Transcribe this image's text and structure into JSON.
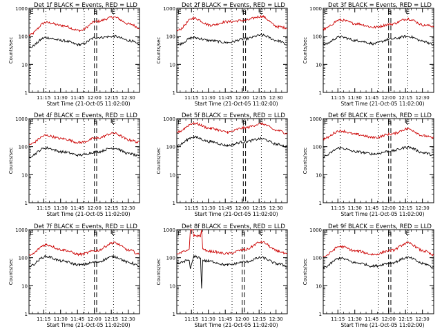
{
  "chart_data": [
    {
      "type": "line",
      "title": "Det 1f BLACK = Events, RED = LLD",
      "xlabel": "Start Time (21-Oct-05 11:02:00)",
      "ylabel": "Counts/sec",
      "yscale": "log",
      "ylim": [
        1,
        1000
      ],
      "y_ticks": [
        "1",
        "10",
        "100",
        "1000"
      ],
      "x_ticks": [
        "11:15",
        "11:30",
        "11:45",
        "12:00",
        "12:15",
        "12:30"
      ],
      "markers": [
        {
          "label": "E",
          "time": "11:02"
        },
        {
          "label": "S",
          "time": "12:01"
        },
        {
          "label": "E",
          "time": "12:17"
        }
      ],
      "night_dotted": [
        "11:17",
        "11:51",
        "12:17"
      ],
      "saa_dashed": [
        "12:00",
        "12:02"
      ],
      "series": [
        {
          "color": "#cc0000",
          "times": [
            "11:02",
            "11:17",
            "11:32",
            "11:47",
            "12:02",
            "12:17",
            "12:32",
            "12:40"
          ],
          "values": [
            110,
            310,
            240,
            160,
            340,
            480,
            270,
            200
          ]
        },
        {
          "color": "#000000",
          "times": [
            "11:02",
            "11:17",
            "11:32",
            "11:47",
            "12:02",
            "12:17",
            "12:32",
            "12:40"
          ],
          "values": [
            40,
            90,
            70,
            50,
            90,
            100,
            70,
            50
          ]
        }
      ]
    },
    {
      "type": "line",
      "title": "Det 2f BLACK = Events, RED = LLD",
      "xlabel": "Start Time (21-Oct-05 11:02:00)",
      "ylabel": "Counts/sec",
      "yscale": "log",
      "ylim": [
        1,
        1000
      ],
      "y_ticks": [
        "1",
        "10",
        "100",
        "1000"
      ],
      "x_ticks": [
        "11:15",
        "11:30",
        "11:45",
        "12:00",
        "12:15",
        "12:30"
      ],
      "markers": [
        {
          "label": "E",
          "time": "11:02"
        },
        {
          "label": "S",
          "time": "12:02"
        },
        {
          "label": "E",
          "time": "12:17"
        }
      ],
      "night_dotted": [
        "11:17",
        "11:51",
        "12:17"
      ],
      "saa_dashed": [
        "12:01",
        "12:03"
      ],
      "series": [
        {
          "color": "#cc0000",
          "times": [
            "11:02",
            "11:17",
            "11:32",
            "11:47",
            "12:02",
            "12:17",
            "12:32",
            "12:40"
          ],
          "values": [
            160,
            440,
            250,
            330,
            370,
            510,
            220,
            200
          ]
        },
        {
          "color": "#000000",
          "times": [
            "11:02",
            "11:17",
            "11:32",
            "11:47",
            "12:02",
            "12:17",
            "12:32",
            "12:40"
          ],
          "values": [
            50,
            90,
            70,
            60,
            80,
            110,
            70,
            50
          ]
        }
      ]
    },
    {
      "type": "line",
      "title": "Det 3f BLACK = Events, RED = LLD",
      "xlabel": "Start Time (21-Oct-05 11:02:00)",
      "ylabel": "Counts/sec",
      "yscale": "log",
      "ylim": [
        1,
        1000
      ],
      "y_ticks": [
        "1",
        "10",
        "100",
        "1000"
      ],
      "x_ticks": [
        "11:15",
        "11:30",
        "11:45",
        "12:00",
        "12:15",
        "12:30"
      ],
      "markers": [
        {
          "label": "E",
          "time": "11:02"
        },
        {
          "label": "S",
          "time": "12:01"
        },
        {
          "label": "E",
          "time": "12:17"
        }
      ],
      "night_dotted": [
        "11:17",
        "11:51",
        "12:17"
      ],
      "saa_dashed": [
        "12:00",
        "12:02"
      ],
      "series": [
        {
          "color": "#cc0000",
          "times": [
            "11:02",
            "11:17",
            "11:32",
            "11:47",
            "12:02",
            "12:17",
            "12:32",
            "12:40"
          ],
          "values": [
            180,
            380,
            280,
            210,
            270,
            420,
            250,
            230
          ]
        },
        {
          "color": "#000000",
          "times": [
            "11:02",
            "11:17",
            "11:32",
            "11:47",
            "12:02",
            "12:17",
            "12:32",
            "12:40"
          ],
          "values": [
            50,
            95,
            70,
            55,
            80,
            100,
            65,
            50
          ]
        }
      ]
    },
    {
      "type": "line",
      "title": "Det 4f BLACK = Events, RED = LLD",
      "xlabel": "Start Time (21-Oct-05 11:02:00)",
      "ylabel": "Counts/sec",
      "yscale": "log",
      "ylim": [
        1,
        1000
      ],
      "y_ticks": [
        "1",
        "10",
        "100",
        "1000"
      ],
      "x_ticks": [
        "11:15",
        "11:30",
        "11:45",
        "12:00",
        "12:15",
        "12:30"
      ],
      "markers": [
        {
          "label": "E",
          "time": "11:02"
        },
        {
          "label": "S",
          "time": "12:01"
        },
        {
          "label": "E",
          "time": "12:17"
        }
      ],
      "night_dotted": [
        "11:17",
        "11:51",
        "12:17"
      ],
      "saa_dashed": [
        "12:00",
        "12:02"
      ],
      "series": [
        {
          "color": "#cc0000",
          "times": [
            "11:02",
            "11:17",
            "11:32",
            "11:47",
            "12:02",
            "12:17",
            "12:32",
            "12:40"
          ],
          "values": [
            120,
            250,
            190,
            140,
            200,
            300,
            170,
            140
          ]
        },
        {
          "color": "#000000",
          "times": [
            "11:02",
            "11:17",
            "11:32",
            "11:47",
            "12:02",
            "12:17",
            "12:32",
            "12:40"
          ],
          "values": [
            45,
            90,
            65,
            50,
            65,
            90,
            55,
            45
          ]
        }
      ]
    },
    {
      "type": "line",
      "title": "Det 5f BLACK = Events, RED = LLD",
      "xlabel": "Start Time (21-Oct-05 11:02:00)",
      "ylabel": "Counts/sec",
      "yscale": "log",
      "ylim": [
        1,
        1000
      ],
      "y_ticks": [
        "1",
        "10",
        "100",
        "1000"
      ],
      "x_ticks": [
        "11:15",
        "11:30",
        "11:45",
        "12:00",
        "12:15",
        "12:30"
      ],
      "markers": [
        {
          "label": "E",
          "time": "11:02"
        },
        {
          "label": "S",
          "time": "12:02"
        },
        {
          "label": "E",
          "time": "12:17"
        }
      ],
      "night_dotted": [
        "11:17",
        "11:51",
        "12:17"
      ],
      "saa_dashed": [
        "12:01",
        "12:03"
      ],
      "series": [
        {
          "color": "#cc0000",
          "times": [
            "11:02",
            "11:17",
            "11:32",
            "11:47",
            "12:02",
            "12:17",
            "12:32",
            "12:40"
          ],
          "values": [
            330,
            680,
            450,
            330,
            470,
            650,
            370,
            300
          ]
        },
        {
          "color": "#000000",
          "times": [
            "11:02",
            "11:17",
            "11:32",
            "11:47",
            "12:02",
            "12:17",
            "12:32",
            "12:40"
          ],
          "values": [
            110,
            220,
            150,
            110,
            150,
            190,
            120,
            100
          ]
        }
      ]
    },
    {
      "type": "line",
      "title": "Det 6f BLACK = Events, RED = LLD",
      "xlabel": "Start Time (21-Oct-05 11:02:00)",
      "ylabel": "Counts/sec",
      "yscale": "log",
      "ylim": [
        1,
        1000
      ],
      "y_ticks": [
        "1",
        "10",
        "100",
        "1000"
      ],
      "x_ticks": [
        "11:15",
        "11:30",
        "11:45",
        "12:00",
        "12:15",
        "12:30"
      ],
      "markers": [
        {
          "label": "E",
          "time": "11:02"
        },
        {
          "label": "S",
          "time": "12:01"
        },
        {
          "label": "E",
          "time": "12:17"
        }
      ],
      "night_dotted": [
        "11:17",
        "11:51",
        "12:17"
      ],
      "saa_dashed": [
        "12:00",
        "12:02"
      ],
      "series": [
        {
          "color": "#cc0000",
          "times": [
            "11:02",
            "11:17",
            "11:32",
            "11:47",
            "12:02",
            "12:17",
            "12:32",
            "12:40"
          ],
          "values": [
            190,
            370,
            270,
            210,
            280,
            430,
            240,
            200
          ]
        },
        {
          "color": "#000000",
          "times": [
            "11:02",
            "11:17",
            "11:32",
            "11:47",
            "12:02",
            "12:17",
            "12:32",
            "12:40"
          ],
          "values": [
            45,
            90,
            65,
            55,
            70,
            95,
            60,
            50
          ]
        }
      ]
    },
    {
      "type": "line",
      "title": "Det 7f BLACK = Events, RED = LLD",
      "xlabel": "Start Time (21-Oct-05 11:02:00)",
      "ylabel": "Counts/sec",
      "yscale": "log",
      "ylim": [
        1,
        1000
      ],
      "y_ticks": [
        "1",
        "10",
        "100",
        "1000"
      ],
      "x_ticks": [
        "11:15",
        "11:30",
        "11:45",
        "12:00",
        "12:15",
        "12:30"
      ],
      "markers": [
        {
          "label": "E",
          "time": "11:02"
        },
        {
          "label": "S",
          "time": "12:01"
        },
        {
          "label": "E",
          "time": "12:17"
        }
      ],
      "night_dotted": [
        "11:17",
        "11:51",
        "12:17"
      ],
      "saa_dashed": [
        "12:00",
        "12:02"
      ],
      "series": [
        {
          "color": "#cc0000",
          "times": [
            "11:02",
            "11:17",
            "11:32",
            "11:47",
            "12:02",
            "12:17",
            "12:32",
            "12:40"
          ],
          "values": [
            120,
            290,
            190,
            130,
            180,
            340,
            180,
            130
          ]
        },
        {
          "color": "#000000",
          "times": [
            "11:02",
            "11:17",
            "11:32",
            "11:47",
            "12:02",
            "12:17",
            "12:32",
            "12:40"
          ],
          "values": [
            50,
            110,
            75,
            55,
            70,
            110,
            65,
            50
          ]
        }
      ]
    },
    {
      "type": "line",
      "title": "Det 8f BLACK = Events, RED = LLD",
      "xlabel": "Start Time (21-Oct-05 11:02:00)",
      "ylabel": "Counts/sec",
      "yscale": "log",
      "ylim": [
        1,
        1000
      ],
      "y_ticks": [
        "1",
        "10",
        "100",
        "1000"
      ],
      "x_ticks": [
        "11:15",
        "11:30",
        "11:45",
        "12:00",
        "12:15",
        "12:30"
      ],
      "markers": [
        {
          "label": "E",
          "time": "11:02"
        },
        {
          "label": "S",
          "time": "12:01"
        },
        {
          "label": "E",
          "time": "12:17"
        }
      ],
      "night_dotted": [
        "11:17",
        "11:51",
        "12:17"
      ],
      "saa_dashed": [
        "12:00",
        "12:02"
      ],
      "series": [
        {
          "color": "#cc0000",
          "times": [
            "11:02",
            "11:11",
            "11:13",
            "11:14",
            "11:16",
            "11:17",
            "11:23",
            "11:24",
            "11:25",
            "11:28",
            "11:30",
            "11:47",
            "12:02",
            "12:17",
            "12:32",
            "12:40"
          ],
          "values": [
            130,
            180,
            200,
            1000,
            1000,
            600,
            600,
            1000,
            200,
            180,
            170,
            140,
            190,
            360,
            170,
            130
          ]
        },
        {
          "color": "#000000",
          "times": [
            "11:02",
            "11:12",
            "11:13",
            "11:14",
            "11:16",
            "11:17",
            "11:23",
            "11:24",
            "11:25",
            "11:30",
            "11:47",
            "12:02",
            "12:17",
            "12:32",
            "12:40"
          ],
          "values": [
            60,
            80,
            80,
            40,
            80,
            110,
            100,
            8,
            80,
            75,
            55,
            70,
            100,
            60,
            50
          ]
        }
      ]
    },
    {
      "type": "line",
      "title": "Det 9f BLACK = Events, RED = LLD",
      "xlabel": "Start Time (21-Oct-05 11:02:00)",
      "ylabel": "Counts/sec",
      "yscale": "log",
      "ylim": [
        1,
        1000
      ],
      "y_ticks": [
        "1",
        "10",
        "100",
        "1000"
      ],
      "x_ticks": [
        "11:15",
        "11:30",
        "11:45",
        "12:00",
        "12:15",
        "12:30"
      ],
      "markers": [
        {
          "label": "E",
          "time": "11:02"
        },
        {
          "label": "S",
          "time": "12:01"
        },
        {
          "label": "E",
          "time": "12:17"
        }
      ],
      "night_dotted": [
        "11:17",
        "11:51",
        "12:17"
      ],
      "saa_dashed": [
        "12:00",
        "12:02"
      ],
      "series": [
        {
          "color": "#cc0000",
          "times": [
            "11:02",
            "11:17",
            "11:32",
            "11:47",
            "12:02",
            "12:17",
            "12:32",
            "12:40"
          ],
          "values": [
            110,
            250,
            170,
            130,
            180,
            330,
            170,
            120
          ]
        },
        {
          "color": "#000000",
          "times": [
            "11:02",
            "11:17",
            "11:32",
            "11:47",
            "12:02",
            "12:17",
            "12:32",
            "12:40"
          ],
          "values": [
            45,
            95,
            65,
            50,
            65,
            100,
            60,
            45
          ]
        }
      ]
    }
  ]
}
